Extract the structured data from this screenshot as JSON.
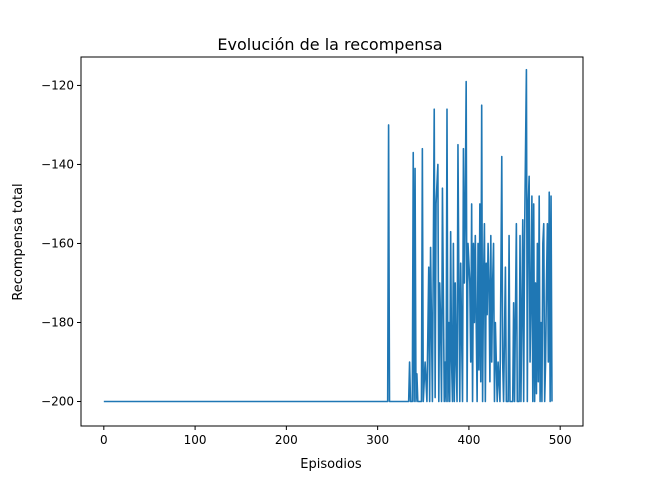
{
  "chart_data": {
    "type": "line",
    "title": "Evolución de la recompensa",
    "xlabel": "Episodios",
    "ylabel": "Recompensa total",
    "xlim": [
      -25,
      525
    ],
    "ylim": [
      -206.2,
      -112.8
    ],
    "xticks": [
      0,
      100,
      200,
      300,
      400,
      500
    ],
    "yticks": [
      -200,
      -180,
      -160,
      -140,
      -120
    ],
    "tick_labels_x": [
      "0",
      "100",
      "200",
      "300",
      "400",
      "500"
    ],
    "tick_labels_y": [
      "−200",
      "−180",
      "−160",
      "−140",
      "−120"
    ],
    "grid": false,
    "series": [
      {
        "color": "#1f77b4",
        "points": [
          [
            0,
            -200
          ],
          [
            311,
            -200
          ],
          [
            312,
            -130
          ],
          [
            313,
            -200
          ],
          [
            334,
            -200
          ],
          [
            335,
            -190
          ],
          [
            336,
            -200
          ],
          [
            338,
            -200
          ],
          [
            339,
            -137
          ],
          [
            340,
            -200
          ],
          [
            341,
            -141
          ],
          [
            342,
            -200
          ],
          [
            343,
            -193
          ],
          [
            344,
            -200
          ],
          [
            348,
            -200
          ],
          [
            349,
            -136
          ],
          [
            350,
            -200
          ],
          [
            352,
            -190
          ],
          [
            354,
            -200
          ],
          [
            356,
            -166
          ],
          [
            357,
            -200
          ],
          [
            358,
            -161
          ],
          [
            360,
            -200
          ],
          [
            362,
            -126
          ],
          [
            363,
            -199
          ],
          [
            364,
            -150
          ],
          [
            366,
            -140
          ],
          [
            367,
            -200
          ],
          [
            368,
            -170
          ],
          [
            369,
            -180
          ],
          [
            370,
            -200
          ],
          [
            371,
            -146
          ],
          [
            373,
            -200
          ],
          [
            374,
            -190
          ],
          [
            375,
            -200
          ],
          [
            376,
            -126
          ],
          [
            377,
            -200
          ],
          [
            378,
            -180
          ],
          [
            379,
            -200
          ],
          [
            380,
            -157
          ],
          [
            381,
            -190
          ],
          [
            382,
            -200
          ],
          [
            383,
            -160
          ],
          [
            384,
            -200
          ],
          [
            385,
            -170
          ],
          [
            386,
            -190
          ],
          [
            387,
            -200
          ],
          [
            388,
            -135
          ],
          [
            389,
            -170
          ],
          [
            390,
            -200
          ],
          [
            391,
            -165
          ],
          [
            393,
            -200
          ],
          [
            394,
            -136
          ],
          [
            395,
            -170
          ],
          [
            396,
            -150
          ],
          [
            397,
            -119
          ],
          [
            398,
            -200
          ],
          [
            399,
            -160
          ],
          [
            400,
            -165
          ],
          [
            401,
            -170
          ],
          [
            402,
            -190
          ],
          [
            403,
            -150
          ],
          [
            404,
            -200
          ],
          [
            405,
            -160
          ],
          [
            406,
            -180
          ],
          [
            407,
            -158
          ],
          [
            408,
            -180
          ],
          [
            409,
            -200
          ],
          [
            410,
            -160
          ],
          [
            411,
            -192
          ],
          [
            412,
            -150
          ],
          [
            413,
            -195
          ],
          [
            414,
            -125
          ],
          [
            415,
            -200
          ],
          [
            416,
            -170
          ],
          [
            417,
            -155
          ],
          [
            418,
            -200
          ],
          [
            419,
            -165
          ],
          [
            420,
            -178
          ],
          [
            421,
            -160
          ],
          [
            422,
            -170
          ],
          [
            423,
            -195
          ],
          [
            424,
            -158
          ],
          [
            425,
            -190
          ],
          [
            426,
            -170
          ],
          [
            427,
            -160
          ],
          [
            428,
            -200
          ],
          [
            429,
            -180
          ],
          [
            431,
            -200
          ],
          [
            432,
            -190
          ],
          [
            434,
            -200
          ],
          [
            436,
            -138
          ],
          [
            437,
            -190
          ],
          [
            438,
            -200
          ],
          [
            440,
            -166
          ],
          [
            441,
            -200
          ],
          [
            443,
            -200
          ],
          [
            444,
            -158
          ],
          [
            445,
            -200
          ],
          [
            448,
            -200
          ],
          [
            449,
            -175
          ],
          [
            450,
            -200
          ],
          [
            452,
            -155
          ],
          [
            453,
            -200
          ],
          [
            455,
            -200
          ],
          [
            456,
            -158
          ],
          [
            457,
            -200
          ],
          [
            459,
            -154
          ],
          [
            460,
            -200
          ],
          [
            461,
            -158
          ],
          [
            463,
            -116
          ],
          [
            464,
            -200
          ],
          [
            465,
            -150
          ],
          [
            466,
            -143
          ],
          [
            467,
            -190
          ],
          [
            468,
            -175
          ],
          [
            469,
            -148
          ],
          [
            470,
            -200
          ],
          [
            471,
            -150
          ],
          [
            472,
            -200
          ],
          [
            473,
            -170
          ],
          [
            474,
            -198
          ],
          [
            475,
            -160
          ],
          [
            476,
            -195
          ],
          [
            477,
            -148
          ],
          [
            478,
            -200
          ],
          [
            479,
            -180
          ],
          [
            480,
            -200
          ],
          [
            481,
            -160
          ],
          [
            482,
            -155
          ],
          [
            483,
            -200
          ],
          [
            484,
            -190
          ],
          [
            485,
            -170
          ],
          [
            486,
            -155
          ],
          [
            487,
            -190
          ],
          [
            488,
            -147
          ],
          [
            489,
            -200
          ],
          [
            490,
            -148
          ],
          [
            491,
            -200
          ]
        ]
      }
    ]
  }
}
